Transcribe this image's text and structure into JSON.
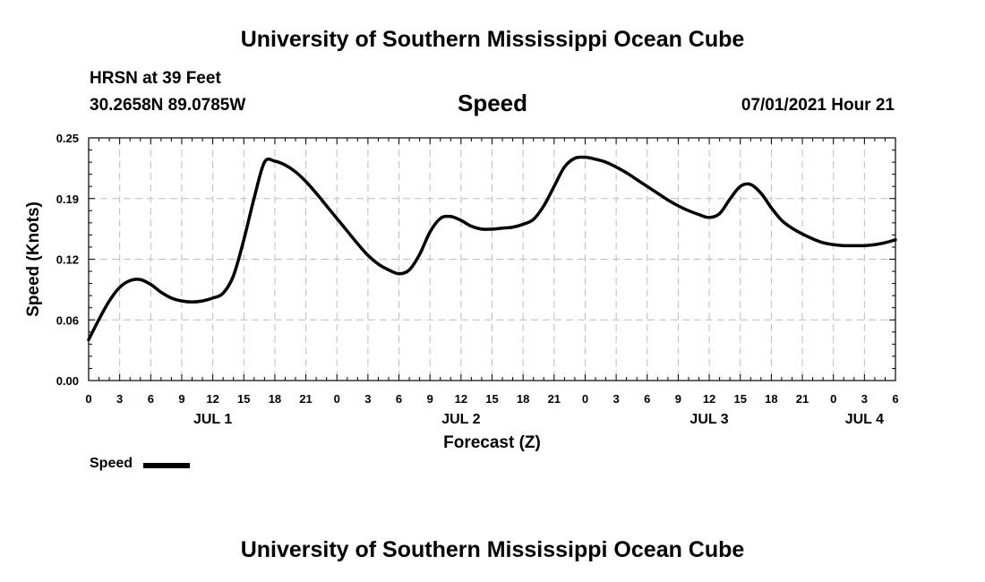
{
  "header": {
    "title": "University of Southern Mississippi Ocean Cube",
    "station": "HRSN at 39 Feet",
    "coordinates": "30.2658N  89.0785W",
    "datetime": "07/01/2021 Hour 21"
  },
  "footer": {
    "title": "University of Southern Mississippi Ocean Cube"
  },
  "chart_data": {
    "type": "line",
    "title": "Speed",
    "xlabel": "Forecast (Z)",
    "ylabel": "Speed (Knots)",
    "ylim": [
      0.0,
      0.25
    ],
    "xlim": [
      0,
      78
    ],
    "x_unit": "hours from 00Z JUL 1",
    "yticks": [
      "0.00",
      "0.06",
      "0.12",
      "0.19",
      "0.25"
    ],
    "ytick_values": [
      0.0,
      0.0625,
      0.125,
      0.1875,
      0.25
    ],
    "xtick_labels": [
      "0",
      "3",
      "6",
      "9",
      "12",
      "15",
      "18",
      "21",
      "0",
      "3",
      "6",
      "9",
      "12",
      "15",
      "18",
      "21",
      "0",
      "3",
      "6",
      "9",
      "12",
      "15",
      "18",
      "21",
      "0",
      "3",
      "6"
    ],
    "xtick_values": [
      0,
      3,
      6,
      9,
      12,
      15,
      18,
      21,
      24,
      27,
      30,
      33,
      36,
      39,
      42,
      45,
      48,
      51,
      54,
      57,
      60,
      63,
      66,
      69,
      72,
      75,
      78
    ],
    "day_labels": [
      {
        "label": "JUL 1",
        "x": 12
      },
      {
        "label": "JUL 2",
        "x": 36
      },
      {
        "label": "JUL 3",
        "x": 60
      },
      {
        "label": "JUL 4",
        "x": 75
      }
    ],
    "grid": true,
    "legend_position": "bottom-left",
    "series": [
      {
        "name": "Speed",
        "color": "#000000",
        "x": [
          0,
          1,
          2,
          3,
          4,
          5,
          6,
          7,
          8,
          9,
          10,
          11,
          12,
          13,
          14,
          15,
          16,
          17,
          18,
          19,
          20,
          21,
          22,
          23,
          24,
          25,
          26,
          27,
          28,
          29,
          30,
          31,
          32,
          33,
          34,
          35,
          36,
          37,
          38,
          39,
          40,
          41,
          42,
          43,
          44,
          45,
          46,
          47,
          48,
          49,
          50,
          51,
          52,
          53,
          54,
          55,
          56,
          57,
          58,
          59,
          60,
          61,
          62,
          63,
          64,
          65,
          66,
          67,
          68,
          69,
          70,
          71,
          72,
          73,
          74,
          75,
          76,
          77,
          78
        ],
        "values": [
          0.042,
          0.063,
          0.082,
          0.096,
          0.103,
          0.104,
          0.099,
          0.091,
          0.085,
          0.082,
          0.081,
          0.082,
          0.085,
          0.09,
          0.108,
          0.145,
          0.188,
          0.225,
          0.226,
          0.222,
          0.215,
          0.205,
          0.193,
          0.18,
          0.167,
          0.154,
          0.141,
          0.129,
          0.12,
          0.114,
          0.11,
          0.114,
          0.13,
          0.153,
          0.167,
          0.169,
          0.165,
          0.159,
          0.156,
          0.156,
          0.157,
          0.158,
          0.161,
          0.166,
          0.18,
          0.2,
          0.22,
          0.229,
          0.23,
          0.228,
          0.225,
          0.22,
          0.214,
          0.207,
          0.2,
          0.193,
          0.186,
          0.18,
          0.175,
          0.171,
          0.168,
          0.172,
          0.187,
          0.2,
          0.202,
          0.193,
          0.178,
          0.165,
          0.157,
          0.151,
          0.146,
          0.142,
          0.14,
          0.139,
          0.139,
          0.139,
          0.14,
          0.142,
          0.145
        ]
      }
    ]
  }
}
